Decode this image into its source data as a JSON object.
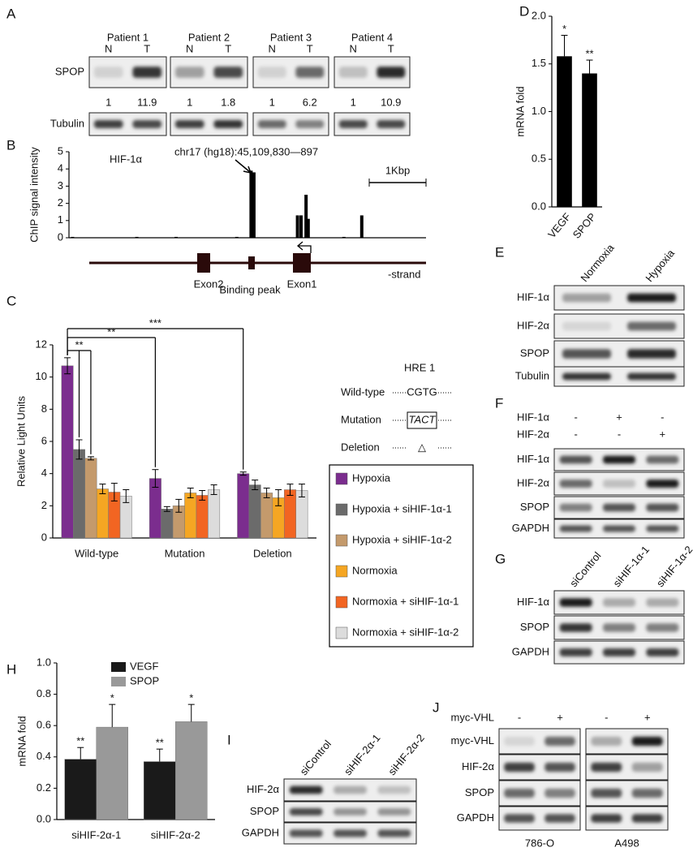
{
  "panel_labels": [
    "A",
    "B",
    "C",
    "D",
    "E",
    "F",
    "G",
    "H",
    "I",
    "J"
  ],
  "blots": {
    "A": {
      "patients": [
        "Patient 1",
        "Patient 2",
        "Patient 3",
        "Patient 4"
      ],
      "lanes": [
        "N",
        "T",
        "N",
        "T",
        "N",
        "T",
        "N",
        "T"
      ],
      "rows": [
        "SPOP",
        "Tubulin"
      ],
      "quantification": [
        1,
        11.9,
        1,
        1.8,
        1,
        6.2,
        1,
        10.9
      ]
    },
    "E": {
      "columns": [
        "Normoxia",
        "Hypoxia"
      ],
      "rows": [
        "HIF-1α",
        "HIF-2α",
        "SPOP",
        "Tubulin"
      ]
    },
    "F": {
      "conditions": [
        {
          "name": "HIF-1α",
          "signs": [
            "-",
            "+",
            "-"
          ]
        },
        {
          "name": "HIF-2α",
          "signs": [
            "-",
            "-",
            "+"
          ]
        }
      ],
      "rows": [
        "HIF-1α",
        "HIF-2α",
        "SPOP",
        "GAPDH"
      ]
    },
    "G": {
      "columns": [
        "siControl",
        "siHIF-1α-1",
        "siHIF-1α-2"
      ],
      "rows": [
        "HIF-1α",
        "SPOP",
        "GAPDH"
      ]
    },
    "I": {
      "columns": [
        "siControl",
        "siHIF-2α-1",
        "siHIF-2α-2"
      ],
      "rows": [
        "HIF-2α",
        "SPOP",
        "GAPDH"
      ]
    },
    "J": {
      "conditions": [
        {
          "name": "myc-VHL",
          "signs": [
            "-",
            "+",
            "-",
            "+"
          ]
        }
      ],
      "rows": [
        "myc-VHL",
        "HIF-2α",
        "SPOP",
        "GAPDH"
      ],
      "cell_lines": [
        "786-O",
        "A498"
      ]
    }
  },
  "chart_data": [
    {
      "type": "bar",
      "title": "HIF-1α",
      "ylabel": "ChIP signal intensity",
      "annotation": "chr17 (hg18):45,109,830—897",
      "scale_label": "1Kbp",
      "features": [
        "Exon2",
        "Binding peak",
        "Exon1"
      ],
      "strand": "-strand",
      "x": [
        1,
        19,
        30,
        47,
        51,
        51.8,
        64,
        65,
        66.4,
        67,
        77,
        82
      ],
      "values": [
        0.05,
        0.05,
        0.05,
        0.05,
        3.9,
        3.8,
        1.3,
        1.3,
        2.5,
        1.1,
        0.05,
        1.3
      ],
      "xlim": [
        0,
        100
      ],
      "ylim": [
        0,
        5
      ],
      "yticks": [
        0,
        1,
        2,
        3,
        4,
        5
      ],
      "color": "#000000"
    },
    {
      "type": "bar",
      "ylabel": "Relative Light Units",
      "categories": [
        "Wild-type",
        "Mutation",
        "Deletion"
      ],
      "series": [
        {
          "name": "Hypoxia",
          "color": "#7b2d8e",
          "values": [
            10.7,
            3.7,
            4.0
          ],
          "errors": [
            0.5,
            0.55,
            0.1
          ]
        },
        {
          "name": "Hypoxia + siHIF-1α-1",
          "color": "#6b6b6b",
          "values": [
            5.5,
            1.8,
            3.3
          ],
          "errors": [
            0.6,
            0.15,
            0.3
          ]
        },
        {
          "name": "Hypoxia + siHIF-1α-2",
          "color": "#c49a6c",
          "values": [
            4.95,
            2.0,
            2.8
          ],
          "errors": [
            0.1,
            0.4,
            0.3
          ]
        },
        {
          "name": "Normoxia",
          "color": "#f5a623",
          "values": [
            3.05,
            2.8,
            2.5
          ],
          "errors": [
            0.3,
            0.3,
            0.5
          ]
        },
        {
          "name": "Normoxia + siHIF-1α-1",
          "color": "#f26522",
          "values": [
            2.85,
            2.65,
            3.0
          ],
          "errors": [
            0.55,
            0.3,
            0.35
          ]
        },
        {
          "name": "Normoxia + siHIF-1α-2",
          "color": "#dcdcdc",
          "values": [
            2.6,
            3.0,
            2.95
          ],
          "errors": [
            0.4,
            0.3,
            0.4
          ]
        }
      ],
      "significance": [
        "**",
        "**",
        "***"
      ],
      "hre": {
        "title": "HRE 1",
        "rows": [
          {
            "name": "Wild-type",
            "seq": "CGTG"
          },
          {
            "name": "Mutation",
            "seq": "TACT"
          },
          {
            "name": "Deletion",
            "seq": "△"
          }
        ]
      },
      "ylim": [
        0,
        12
      ],
      "yticks": [
        0,
        2,
        4,
        6,
        8,
        10,
        12
      ]
    },
    {
      "type": "bar",
      "ylabel": "mRNA fold",
      "categories": [
        "VEGF",
        "SPOP"
      ],
      "values": [
        1.58,
        1.4
      ],
      "errors": [
        0.22,
        0.14
      ],
      "annotations": [
        "*",
        "**"
      ],
      "color": "#000000",
      "ylim": [
        0,
        2
      ],
      "yticks": [
        {
          "value": 0,
          "label": "0.0"
        },
        {
          "value": 0.5,
          "label": "0.5"
        },
        {
          "value": 1,
          "label": "1.0"
        },
        {
          "value": 1.5,
          "label": "1.5"
        },
        {
          "value": 2,
          "label": "2.0"
        }
      ]
    },
    {
      "type": "bar",
      "ylabel": "mRNA fold",
      "categories": [
        "siHIF-2α-1",
        "siHIF-2α-2"
      ],
      "series": [
        {
          "name": "VEGF",
          "color": "#1a1a1a",
          "values": [
            0.385,
            0.37
          ],
          "errors": [
            0.075,
            0.08
          ],
          "annotations": [
            "**",
            "**"
          ]
        },
        {
          "name": "SPOP",
          "color": "#999999",
          "values": [
            0.59,
            0.625
          ],
          "errors": [
            0.145,
            0.11
          ],
          "annotations": [
            "*",
            "*"
          ]
        }
      ],
      "ylim": [
        0,
        1
      ],
      "yticks": [
        {
          "value": 0,
          "label": "0.0"
        },
        {
          "value": 0.2,
          "label": "0.2"
        },
        {
          "value": 0.4,
          "label": "0.4"
        },
        {
          "value": 0.6,
          "label": "0.6"
        },
        {
          "value": 0.8,
          "label": "0.8"
        },
        {
          "value": 1,
          "label": "1.0"
        }
      ]
    }
  ]
}
